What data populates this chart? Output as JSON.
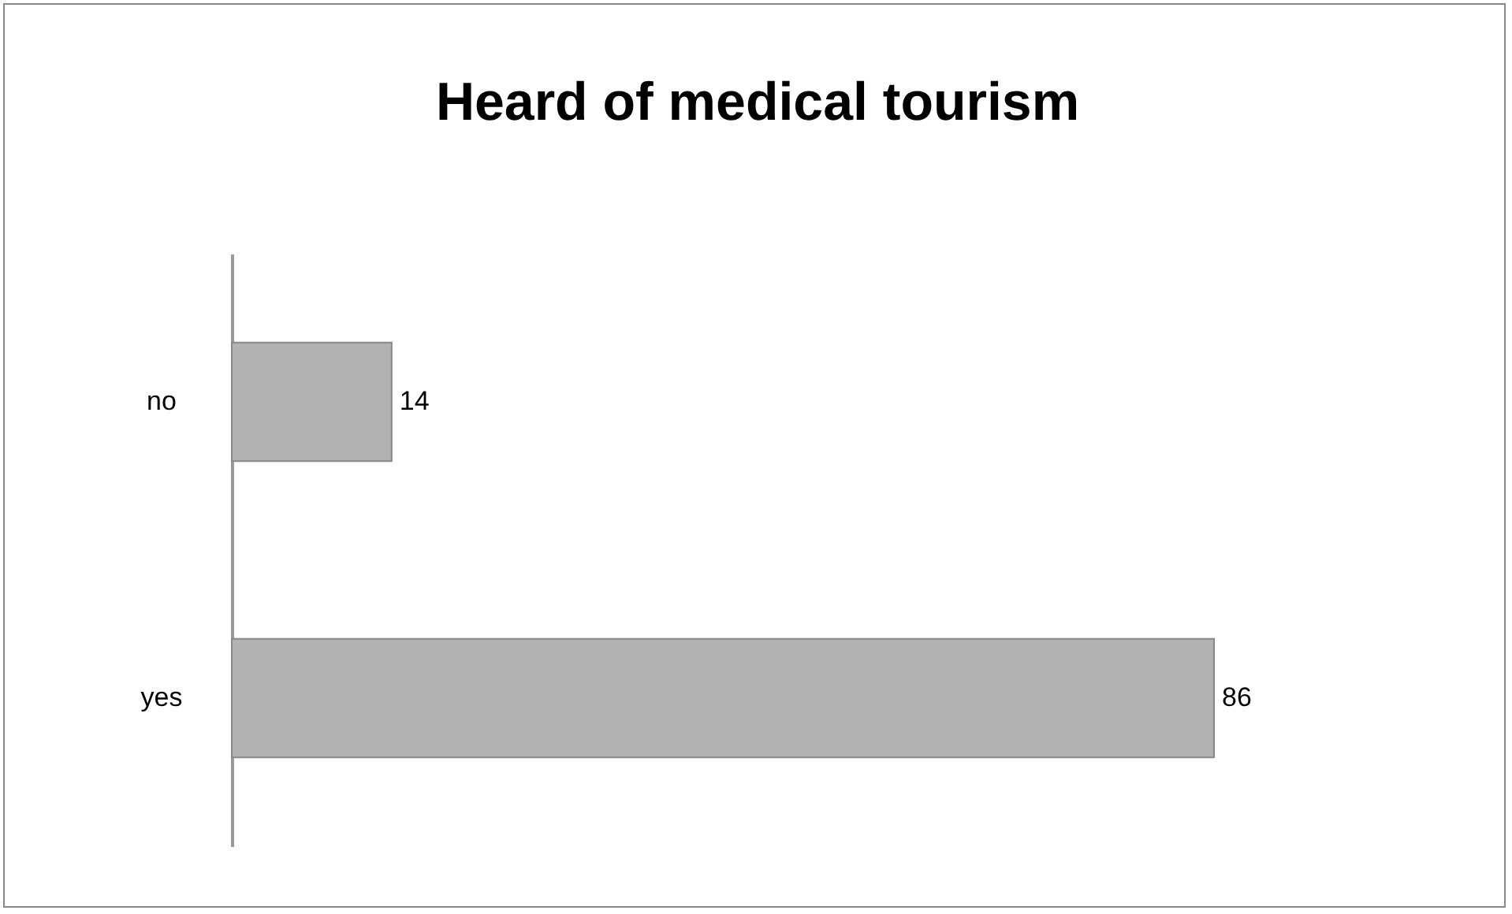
{
  "chart_data": {
    "type": "bar",
    "orientation": "horizontal",
    "title": "Heard of medical tourism",
    "categories": [
      "no",
      "yes"
    ],
    "values": [
      14,
      86
    ],
    "color": "#b2b2b2",
    "data_labels": true
  }
}
